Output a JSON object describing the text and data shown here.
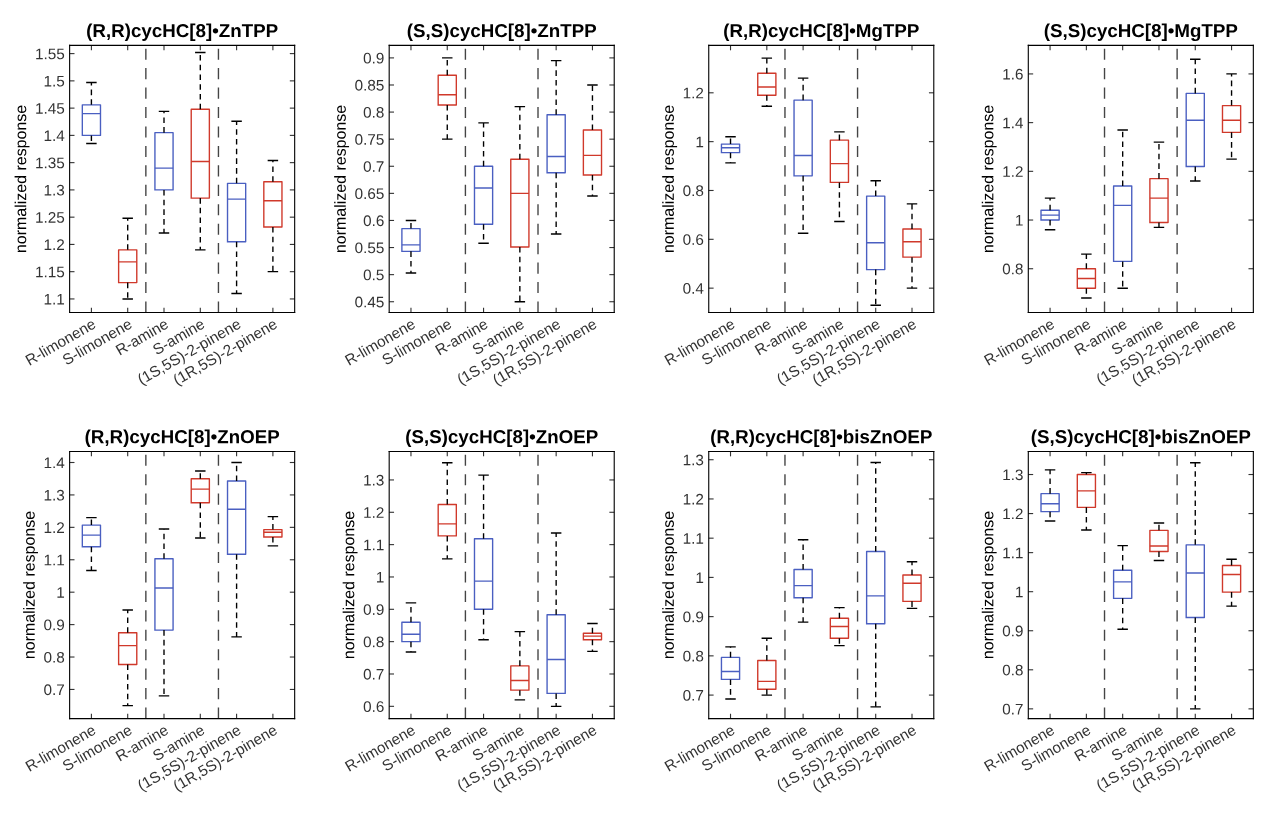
{
  "chart_data": [
    {
      "type": "box",
      "title": "(R,R)cycHC[8]•ZnTPP",
      "ylabel": "normalized response",
      "categories": [
        "R-limonene",
        "S-limonene",
        "R-amine",
        "S-amine",
        "(1S,5S)-2-pinene",
        "(1R,5S)-2-pinene"
      ],
      "colors": [
        "#4a5fc1",
        "#d0392b",
        "#4a5fc1",
        "#d0392b",
        "#4a5fc1",
        "#d0392b"
      ],
      "ylim": [
        1.075,
        1.565
      ],
      "yticks": [
        1.1,
        1.15,
        1.2,
        1.25,
        1.3,
        1.35,
        1.4,
        1.45,
        1.5,
        1.55
      ],
      "boxes": [
        {
          "low": 1.385,
          "q1": 1.4,
          "median": 1.44,
          "q3": 1.456,
          "high": 1.497
        },
        {
          "low": 1.1,
          "q1": 1.13,
          "median": 1.168,
          "q3": 1.19,
          "high": 1.248
        },
        {
          "low": 1.221,
          "q1": 1.3,
          "median": 1.34,
          "q3": 1.405,
          "high": 1.444
        },
        {
          "low": 1.19,
          "q1": 1.285,
          "median": 1.352,
          "q3": 1.448,
          "high": 1.552
        },
        {
          "low": 1.11,
          "q1": 1.205,
          "median": 1.283,
          "q3": 1.312,
          "high": 1.426
        },
        {
          "low": 1.15,
          "q1": 1.232,
          "median": 1.28,
          "q3": 1.315,
          "high": 1.354
        }
      ]
    },
    {
      "type": "box",
      "title": "(S,S)cycHC[8]•ZnTPP",
      "ylabel": "normalized response",
      "categories": [
        "R-limonene",
        "S-limonene",
        "R-amine",
        "S-amine",
        "(1S,5S)-2-pinene",
        "(1R,5S)-2-pinene"
      ],
      "colors": [
        "#4a5fc1",
        "#d0392b",
        "#4a5fc1",
        "#d0392b",
        "#4a5fc1",
        "#d0392b"
      ],
      "ylim": [
        0.43,
        0.923
      ],
      "yticks": [
        0.45,
        0.5,
        0.55,
        0.6,
        0.65,
        0.7,
        0.75,
        0.8,
        0.85,
        0.9
      ],
      "boxes": [
        {
          "low": 0.503,
          "q1": 0.543,
          "median": 0.555,
          "q3": 0.585,
          "high": 0.6
        },
        {
          "low": 0.75,
          "q1": 0.813,
          "median": 0.832,
          "q3": 0.868,
          "high": 0.9
        },
        {
          "low": 0.558,
          "q1": 0.593,
          "median": 0.66,
          "q3": 0.7,
          "high": 0.78
        },
        {
          "low": 0.45,
          "q1": 0.551,
          "median": 0.65,
          "q3": 0.713,
          "high": 0.81
        },
        {
          "low": 0.575,
          "q1": 0.688,
          "median": 0.718,
          "q3": 0.795,
          "high": 0.895
        },
        {
          "low": 0.645,
          "q1": 0.684,
          "median": 0.72,
          "q3": 0.767,
          "high": 0.85
        }
      ]
    },
    {
      "type": "box",
      "title": "(R,R)cycHC[8]•MgTPP",
      "ylabel": "normalized response",
      "categories": [
        "R-limonene",
        "S-limonene",
        "R-amine",
        "S-amine",
        "(1S,5S)-2-pinene",
        "(1R,5S)-2-pinene"
      ],
      "colors": [
        "#4a5fc1",
        "#d0392b",
        "#4a5fc1",
        "#d0392b",
        "#4a5fc1",
        "#d0392b"
      ],
      "ylim": [
        0.3,
        1.394
      ],
      "yticks": [
        0.4,
        0.6,
        0.8,
        1,
        1.2
      ],
      "boxes": [
        {
          "low": 0.913,
          "q1": 0.955,
          "median": 0.975,
          "q3": 0.99,
          "high": 1.02
        },
        {
          "low": 1.145,
          "q1": 1.19,
          "median": 1.224,
          "q3": 1.28,
          "high": 1.342
        },
        {
          "low": 0.625,
          "q1": 0.86,
          "median": 0.943,
          "q3": 1.17,
          "high": 1.26
        },
        {
          "low": 0.673,
          "q1": 0.833,
          "median": 0.91,
          "q3": 1.006,
          "high": 1.04
        },
        {
          "low": 0.33,
          "q1": 0.476,
          "median": 0.586,
          "q3": 0.777,
          "high": 0.84
        },
        {
          "low": 0.4,
          "q1": 0.527,
          "median": 0.59,
          "q3": 0.642,
          "high": 0.745
        }
      ]
    },
    {
      "type": "box",
      "title": "(S,S)cycHC[8]•MgTPP",
      "ylabel": "normalized response",
      "categories": [
        "R-limonene",
        "S-limonene",
        "R-amine",
        "S-amine",
        "(1S,5S)-2-pinene",
        "(1R,5S)-2-pinene"
      ],
      "colors": [
        "#4a5fc1",
        "#d0392b",
        "#4a5fc1",
        "#d0392b",
        "#4a5fc1",
        "#d0392b"
      ],
      "ylim": [
        0.62,
        1.717
      ],
      "yticks": [
        0.8,
        1,
        1.2,
        1.4,
        1.6
      ],
      "boxes": [
        {
          "low": 0.96,
          "q1": 1.0,
          "median": 1.02,
          "q3": 1.04,
          "high": 1.09
        },
        {
          "low": 0.68,
          "q1": 0.72,
          "median": 0.76,
          "q3": 0.8,
          "high": 0.86
        },
        {
          "low": 0.72,
          "q1": 0.83,
          "median": 1.06,
          "q3": 1.14,
          "high": 1.37
        },
        {
          "low": 0.97,
          "q1": 0.99,
          "median": 1.09,
          "q3": 1.17,
          "high": 1.32
        },
        {
          "low": 1.16,
          "q1": 1.22,
          "median": 1.41,
          "q3": 1.52,
          "high": 1.66
        },
        {
          "low": 1.25,
          "q1": 1.36,
          "median": 1.41,
          "q3": 1.47,
          "high": 1.6
        }
      ]
    },
    {
      "type": "box",
      "title": "(R,R)cycHC[8]•ZnOEP",
      "ylabel": "normalized response",
      "categories": [
        "R-limonene",
        "S-limonene",
        "R-amine",
        "S-amine",
        "(1S,5S)-2-pinene",
        "(1R,5S)-2-pinene"
      ],
      "colors": [
        "#4a5fc1",
        "#d0392b",
        "#4a5fc1",
        "#d0392b",
        "#4a5fc1",
        "#d0392b"
      ],
      "ylim": [
        0.61,
        1.434
      ],
      "yticks": [
        0.7,
        0.8,
        0.9,
        1,
        1.1,
        1.2,
        1.3,
        1.4
      ],
      "boxes": [
        {
          "low": 1.067,
          "q1": 1.14,
          "median": 1.176,
          "q3": 1.207,
          "high": 1.23
        },
        {
          "low": 0.65,
          "q1": 0.777,
          "median": 0.835,
          "q3": 0.875,
          "high": 0.945
        },
        {
          "low": 0.68,
          "q1": 0.883,
          "median": 1.013,
          "q3": 1.103,
          "high": 1.195
        },
        {
          "low": 1.167,
          "q1": 1.276,
          "median": 1.318,
          "q3": 1.35,
          "high": 1.374
        },
        {
          "low": 0.862,
          "q1": 1.117,
          "median": 1.256,
          "q3": 1.343,
          "high": 1.4
        },
        {
          "low": 1.143,
          "q1": 1.17,
          "median": 1.185,
          "q3": 1.193,
          "high": 1.233
        }
      ]
    },
    {
      "type": "box",
      "title": "(S,S)cycHC[8]•ZnOEP",
      "ylabel": "normalized response",
      "categories": [
        "R-limonene",
        "S-limonene",
        "R-amine",
        "S-amine",
        "(1S,5S)-2-pinene",
        "(1R,5S)-2-pinene"
      ],
      "colors": [
        "#4a5fc1",
        "#d0392b",
        "#4a5fc1",
        "#d0392b",
        "#4a5fc1",
        "#d0392b"
      ],
      "ylim": [
        0.562,
        1.388
      ],
      "yticks": [
        0.6,
        0.7,
        0.8,
        0.9,
        1,
        1.1,
        1.2,
        1.3
      ],
      "boxes": [
        {
          "low": 0.768,
          "q1": 0.8,
          "median": 0.823,
          "q3": 0.86,
          "high": 0.92
        },
        {
          "low": 1.056,
          "q1": 1.127,
          "median": 1.164,
          "q3": 1.224,
          "high": 1.353
        },
        {
          "low": 0.806,
          "q1": 0.9,
          "median": 0.987,
          "q3": 1.118,
          "high": 1.315
        },
        {
          "low": 0.62,
          "q1": 0.65,
          "median": 0.68,
          "q3": 0.725,
          "high": 0.831
        },
        {
          "low": 0.6,
          "q1": 0.64,
          "median": 0.745,
          "q3": 0.883,
          "high": 1.136
        },
        {
          "low": 0.77,
          "q1": 0.806,
          "median": 0.817,
          "q3": 0.826,
          "high": 0.856
        }
      ]
    },
    {
      "type": "box",
      "title": "(R,R)cycHC[8]•bisZnOEP",
      "ylabel": "normalized response",
      "categories": [
        "R-limonene",
        "S-limonene",
        "R-amine",
        "S-amine",
        "(1S,5S)-2-pinene",
        "(1R,5S)-2-pinene"
      ],
      "colors": [
        "#4a5fc1",
        "#d0392b",
        "#4a5fc1",
        "#d0392b",
        "#4a5fc1",
        "#d0392b"
      ],
      "ylim": [
        0.64,
        1.321
      ],
      "yticks": [
        0.7,
        0.8,
        0.9,
        1,
        1.1,
        1.2,
        1.3
      ],
      "boxes": [
        {
          "low": 0.69,
          "q1": 0.74,
          "median": 0.76,
          "q3": 0.796,
          "high": 0.823
        },
        {
          "low": 0.7,
          "q1": 0.715,
          "median": 0.735,
          "q3": 0.788,
          "high": 0.845
        },
        {
          "low": 0.886,
          "q1": 0.948,
          "median": 0.979,
          "q3": 1.02,
          "high": 1.096
        },
        {
          "low": 0.826,
          "q1": 0.845,
          "median": 0.875,
          "q3": 0.896,
          "high": 0.923
        },
        {
          "low": 0.67,
          "q1": 0.882,
          "median": 0.953,
          "q3": 1.066,
          "high": 1.293
        },
        {
          "low": 0.921,
          "q1": 0.939,
          "median": 0.985,
          "q3": 1.006,
          "high": 1.04
        }
      ]
    },
    {
      "type": "box",
      "title": "(S,S)cycHC[8]•bisZnOEP",
      "ylabel": "normalized response",
      "categories": [
        "R-limonene",
        "S-limonene",
        "R-amine",
        "S-amine",
        "(1S,5S)-2-pinene",
        "(1R,5S)-2-pinene"
      ],
      "colors": [
        "#4a5fc1",
        "#d0392b",
        "#4a5fc1",
        "#d0392b",
        "#4a5fc1",
        "#d0392b"
      ],
      "ylim": [
        0.675,
        1.359
      ],
      "yticks": [
        0.7,
        0.8,
        0.9,
        1,
        1.1,
        1.2,
        1.3
      ],
      "boxes": [
        {
          "low": 1.181,
          "q1": 1.205,
          "median": 1.225,
          "q3": 1.251,
          "high": 1.312
        },
        {
          "low": 1.158,
          "q1": 1.216,
          "median": 1.258,
          "q3": 1.3,
          "high": 1.305
        },
        {
          "low": 0.904,
          "q1": 0.983,
          "median": 1.025,
          "q3": 1.055,
          "high": 1.118
        },
        {
          "low": 1.08,
          "q1": 1.103,
          "median": 1.117,
          "q3": 1.157,
          "high": 1.176
        },
        {
          "low": 0.7,
          "q1": 0.934,
          "median": 1.048,
          "q3": 1.12,
          "high": 1.33
        },
        {
          "low": 0.963,
          "q1": 0.999,
          "median": 1.044,
          "q3": 1.067,
          "high": 1.083
        }
      ]
    }
  ]
}
